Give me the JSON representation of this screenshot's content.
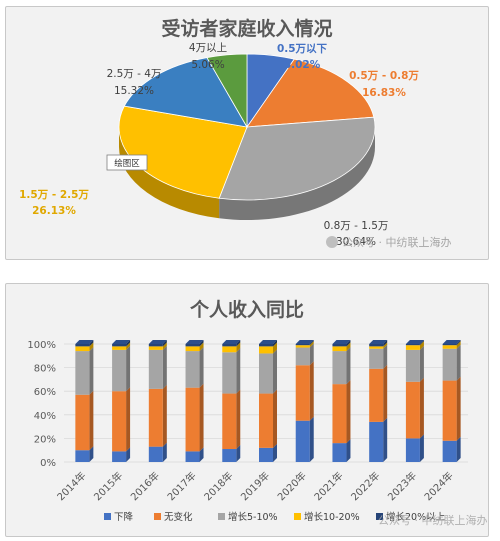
{
  "chart_data": [
    {
      "type": "pie",
      "title": "受访者家庭收入情况",
      "slices": [
        {
          "label": "0.5万以下",
          "pct_text": "6.02%",
          "value": 6.02,
          "color": "#4472c4"
        },
        {
          "label": "0.5万 - 0.8万",
          "pct_text": "16.83%",
          "value": 16.83,
          "color": "#ed7d31"
        },
        {
          "label": "0.8万 - 1.5万",
          "pct_text": "30.64%",
          "value": 30.64,
          "color": "#a5a5a5"
        },
        {
          "label": "1.5万 - 2.5万",
          "pct_text": "26.13%",
          "value": 26.13,
          "color": "#ffc000"
        },
        {
          "label": "2.5万 - 4万",
          "pct_text": "15.32%",
          "value": 15.32,
          "color": "#3a7fc1"
        },
        {
          "label": "4万以上",
          "pct_text": "5.06%",
          "value": 5.06,
          "color": "#5b9b3e"
        }
      ],
      "tooltip": "绘图区"
    },
    {
      "type": "bar",
      "stacked": "percent",
      "title": "个人收入同比",
      "categories": [
        "2014年",
        "2015年",
        "2016年",
        "2017年",
        "2018年",
        "2019年",
        "2020年",
        "2021年",
        "2022年",
        "2023年",
        "2024年"
      ],
      "y_ticks": [
        "0%",
        "20%",
        "40%",
        "60%",
        "80%",
        "100%"
      ],
      "ylim": [
        0,
        100
      ],
      "series": [
        {
          "name": "下降",
          "color": "#4472c4",
          "values": [
            10,
            9,
            13,
            9,
            11,
            12,
            35,
            16,
            34,
            20,
            18
          ]
        },
        {
          "name": "无变化",
          "color": "#ed7d31",
          "values": [
            47,
            51,
            49,
            54,
            47,
            46,
            47,
            50,
            45,
            48,
            51
          ]
        },
        {
          "name": "增长5-10%",
          "color": "#a5a5a5",
          "values": [
            37,
            35,
            33,
            31,
            35,
            34,
            15,
            28,
            17,
            27,
            27
          ]
        },
        {
          "name": "增长10-20%",
          "color": "#ffc000",
          "values": [
            4,
            3,
            3,
            4,
            5,
            6,
            2,
            4,
            2,
            4,
            3
          ]
        },
        {
          "name": "增长20%以上",
          "color": "#264478",
          "values": [
            2,
            2,
            2,
            2,
            2,
            2,
            1,
            2,
            2,
            1,
            1
          ]
        }
      ]
    }
  ],
  "watermark": "公众号 · 中纺联上海办"
}
